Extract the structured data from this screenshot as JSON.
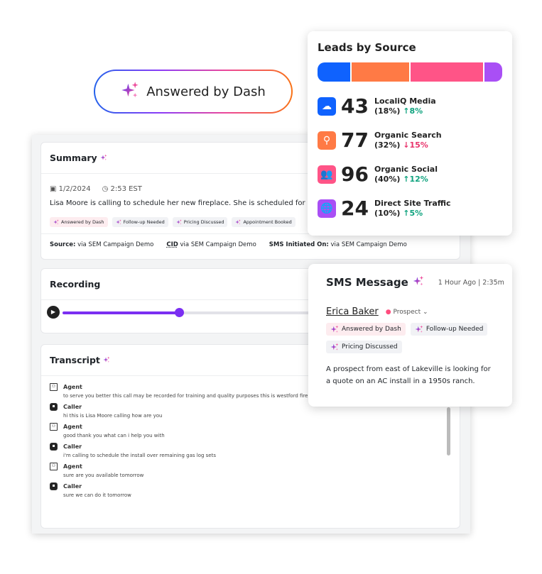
{
  "dash_badge": {
    "label": "Answered by Dash"
  },
  "summary": {
    "title": "Summary",
    "date": "1/2/2024",
    "time": "2:53 EST",
    "description": "Lisa Moore is calling to schedule her new fireplace. She is scheduled for tomorrow",
    "tags": [
      "Answered by Dash",
      "Follow-up Needed",
      "Pricing Discussed",
      "Appointment Booked"
    ],
    "source_label": "Source:",
    "source_value": "via SEM Campaign Demo",
    "cid_label": "CID",
    "cid_value": "via SEM Campaign Demo",
    "sms_label": "SMS Initiated On:",
    "sms_value": "via SEM Campaign Demo"
  },
  "recording": {
    "title": "Recording",
    "progress": 0.3
  },
  "transcript": {
    "title": "Transcript",
    "lines": [
      {
        "speaker": "Agent",
        "text": "to serve you better this call may be recorded for training and quality purposes this is westford fireplace"
      },
      {
        "speaker": "Caller",
        "text": "hi this is Lisa Moore calling how are you"
      },
      {
        "speaker": "Agent",
        "text": "good thank you what can i help you with"
      },
      {
        "speaker": "Caller",
        "text": "i'm calling to schedule the install over remaining gas log sets"
      },
      {
        "speaker": "Agent",
        "text": "sure are you available tomorrow"
      },
      {
        "speaker": "Caller",
        "text": "sure we can do it tomorrow"
      }
    ]
  },
  "leads": {
    "title": "Leads by Source",
    "sources": [
      {
        "name": "LocaliQ Media",
        "count": "43",
        "share": "(18%)",
        "change": "↑8%",
        "trend": "up",
        "color": "#0f62fe",
        "icon": "cloud-icon",
        "weight": 18
      },
      {
        "name": "Organic Search",
        "count": "77",
        "share": "(32%)",
        "change": "↓15%",
        "trend": "down",
        "color": "#ff7a45",
        "icon": "search-icon",
        "weight": 32
      },
      {
        "name": "Organic Social",
        "count": "96",
        "share": "(40%)",
        "change": "↑12%",
        "trend": "up",
        "color": "#ff5487",
        "icon": "people-icon",
        "weight": 40
      },
      {
        "name": "Direct Site Traffic",
        "count": "24",
        "share": "(10%)",
        "change": "↑5%",
        "trend": "up",
        "color": "#a94ff5",
        "icon": "globe-icon",
        "weight": 10
      }
    ],
    "up_color": "#10a37f",
    "down_color": "#e8336b"
  },
  "sms": {
    "title": "SMS Message",
    "time": "1 Hour Ago | 2:35m",
    "contact": "Erica Baker",
    "status": "Prospect",
    "tags": [
      "Answered by Dash",
      "Follow-up Needed",
      "Pricing Discussed"
    ],
    "body": "A prospect from east of Lakeville is looking for a quote on an AC install in a 1950s ranch."
  }
}
